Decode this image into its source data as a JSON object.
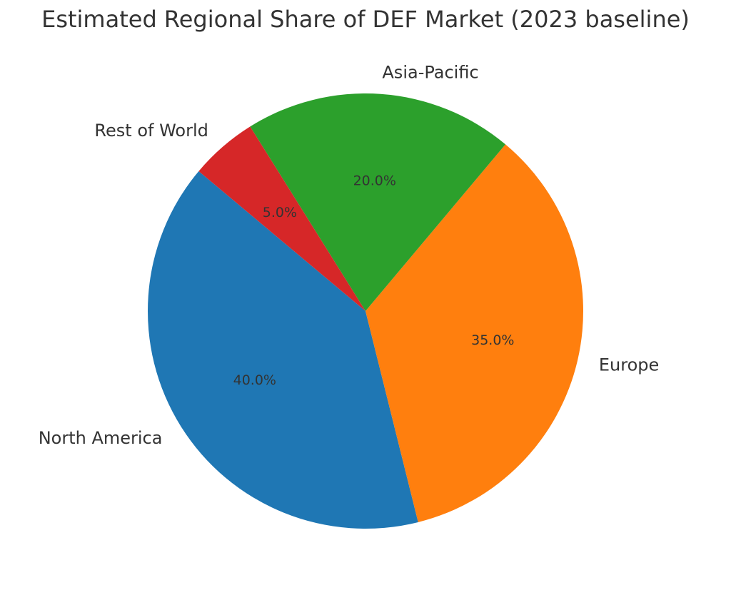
{
  "chart_data": {
    "type": "pie",
    "title": "Estimated Regional Share of DEF Market (2023 baseline)",
    "categories": [
      "North America",
      "Europe",
      "Asia-Pacific",
      "Rest of World"
    ],
    "values": [
      40.0,
      35.0,
      20.0,
      5.0
    ],
    "percent_labels": [
      "40.0%",
      "35.0%",
      "20.0%",
      "5.0%"
    ],
    "colors": [
      "#1f77b4",
      "#ff7f0e",
      "#2ca02c",
      "#d62728"
    ],
    "start_angle_deg": 140,
    "direction": "counterclockwise",
    "legend": "none"
  }
}
